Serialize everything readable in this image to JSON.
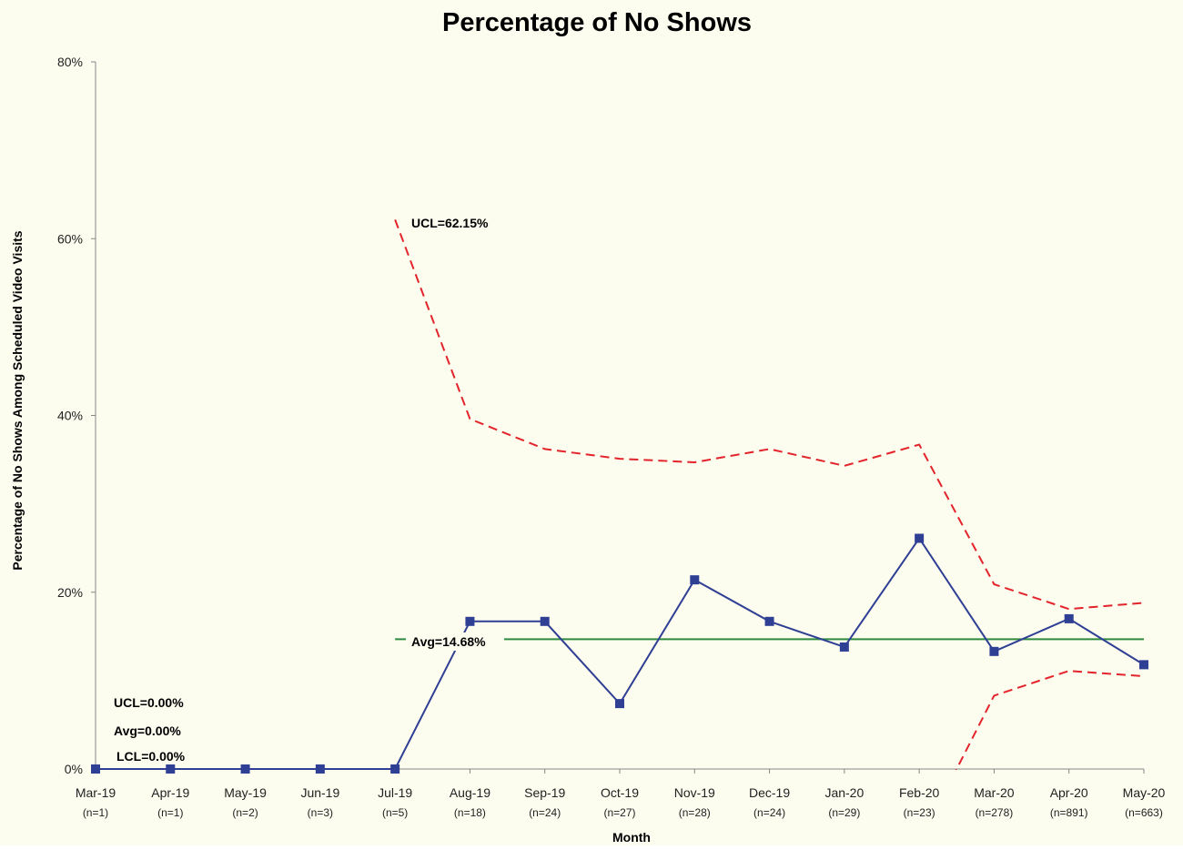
{
  "chart_data": {
    "type": "line",
    "title": "Percentage of No Shows",
    "x_label": "Month",
    "y_label": "Percentage of  No Shows Among Scheduled  Video Visits",
    "categories": [
      "Mar-19",
      "Apr-19",
      "May-19",
      "Jun-19",
      "Jul-19",
      "Aug-19",
      "Sep-19",
      "Oct-19",
      "Nov-19",
      "Dec-19",
      "Jan-20",
      "Feb-20",
      "Mar-20",
      "Apr-20",
      "May-20"
    ],
    "sample_sizes": [
      "(n=1)",
      "(n=1)",
      "(n=2)",
      "(n=3)",
      "(n=5)",
      "(n=18)",
      "(n=24)",
      "(n=27)",
      "(n=28)",
      "(n=24)",
      "(n=29)",
      "(n=23)",
      "(n=278)",
      "(n=891)",
      "(n=663)"
    ],
    "ylim": [
      0,
      80
    ],
    "yticks": [
      {
        "value": 0,
        "label": "0%"
      },
      {
        "value": 20,
        "label": "20%"
      },
      {
        "value": 40,
        "label": "40%"
      },
      {
        "value": 60,
        "label": "60%"
      },
      {
        "value": 80,
        "label": "80%"
      }
    ],
    "series": [
      {
        "color": "#2f3f94",
        "style": "solid",
        "markers": true,
        "values": [
          0,
          0,
          0,
          0,
          0,
          16.7,
          16.7,
          7.4,
          21.4,
          16.7,
          13.8,
          26.1,
          13.3,
          17.0,
          11.8
        ]
      },
      {
        "color": "#2e8b3e",
        "style": "solid",
        "markers": false,
        "values": [
          0,
          0,
          0,
          0,
          null,
          null,
          null,
          null,
          null,
          null,
          null,
          null,
          null,
          null,
          null
        ]
      },
      {
        "color": "#e3242b",
        "style": "dashed",
        "markers": false,
        "values": [
          0,
          0,
          0,
          0,
          null,
          null,
          null,
          null,
          null,
          null,
          null,
          null,
          null,
          null,
          null
        ]
      },
      {
        "color": "#e3242b",
        "style": "dashed",
        "markers": false,
        "values": [
          0,
          0,
          0,
          0,
          null,
          null,
          null,
          null,
          null,
          null,
          null,
          null,
          null,
          null,
          null
        ]
      },
      {
        "color": "#2e8b3e",
        "style": "solid",
        "markers": false,
        "values": [
          null,
          null,
          null,
          null,
          14.68,
          14.68,
          14.68,
          14.68,
          14.68,
          14.68,
          14.68,
          14.68,
          14.68,
          14.68,
          14.68
        ]
      },
      {
        "color": "#e3242b",
        "style": "dashed",
        "markers": false,
        "values": [
          null,
          null,
          null,
          null,
          62.15,
          39.6,
          36.2,
          35.1,
          34.7,
          36.2,
          34.3,
          36.7,
          20.9,
          18.1,
          18.8
        ]
      },
      {
        "color": "#e3242b",
        "style": "dashed",
        "markers": false,
        "values": [
          null,
          null,
          null,
          null,
          null,
          null,
          null,
          null,
          null,
          null,
          null,
          -8.3,
          8.3,
          11.1,
          10.5
        ]
      }
    ],
    "annotations": [
      "UCL=62.15%",
      "Avg=14.68%",
      "UCL=0.00%",
      "Avg=0.00%",
      "LCL=0.00%"
    ],
    "background": "#fcfcef"
  }
}
